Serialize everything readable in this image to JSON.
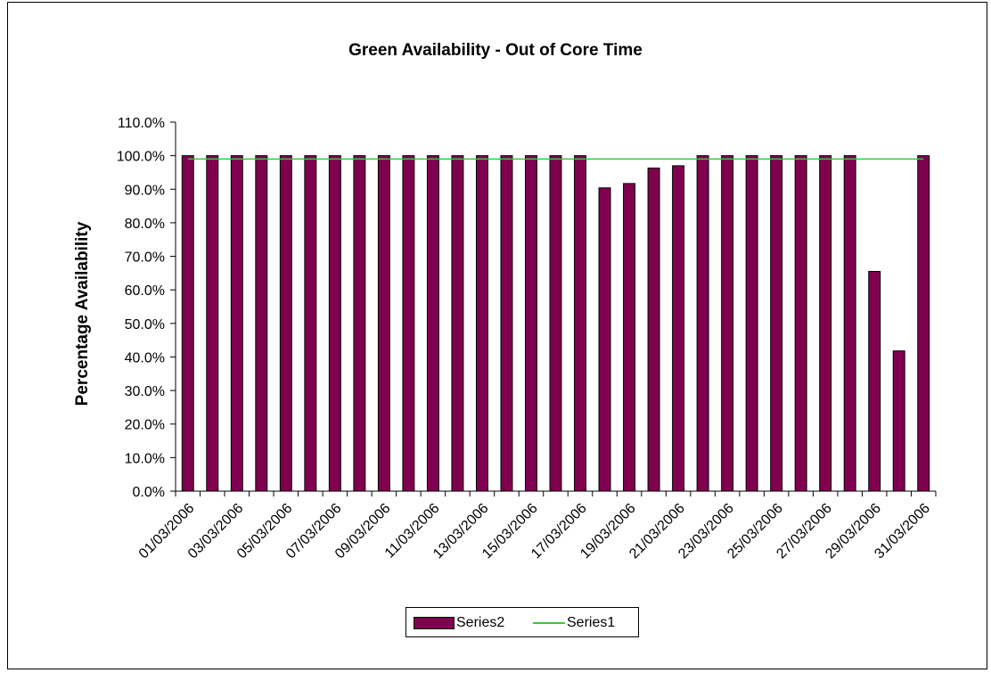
{
  "chart_data": {
    "type": "bar",
    "title": "Green Availability - Out of Core Time",
    "xlabel": "",
    "ylabel": "Percentage Availability",
    "ylim": [
      0,
      1.1
    ],
    "ytick_step": 0.1,
    "y_format": "percent_1dp",
    "categories": [
      "01/03/2006",
      "02/03/2006",
      "03/03/2006",
      "04/03/2006",
      "05/03/2006",
      "06/03/2006",
      "07/03/2006",
      "08/03/2006",
      "09/03/2006",
      "10/03/2006",
      "11/03/2006",
      "12/03/2006",
      "13/03/2006",
      "14/03/2006",
      "15/03/2006",
      "16/03/2006",
      "17/03/2006",
      "18/03/2006",
      "19/03/2006",
      "20/03/2006",
      "21/03/2006",
      "22/03/2006",
      "23/03/2006",
      "24/03/2006",
      "25/03/2006",
      "26/03/2006",
      "27/03/2006",
      "28/03/2006",
      "29/03/2006",
      "30/03/2006",
      "31/03/2006"
    ],
    "xtick_labels_shown": [
      "01/03/2006",
      "03/03/2006",
      "05/03/2006",
      "07/03/2006",
      "09/03/2006",
      "11/03/2006",
      "13/03/2006",
      "15/03/2006",
      "17/03/2006",
      "19/03/2006",
      "21/03/2006",
      "23/03/2006",
      "25/03/2006",
      "27/03/2006",
      "29/03/2006",
      "31/03/2006"
    ],
    "series": [
      {
        "name": "Series2",
        "kind": "bar",
        "color": "#800050",
        "values": [
          1.0,
          1.0,
          1.0,
          1.0,
          1.0,
          1.0,
          1.0,
          1.0,
          1.0,
          1.0,
          1.0,
          1.0,
          1.0,
          1.0,
          1.0,
          1.0,
          1.0,
          0.904,
          0.917,
          0.963,
          0.97,
          1.0,
          1.0,
          1.0,
          1.0,
          1.0,
          1.0,
          1.0,
          0.655,
          0.418,
          1.0
        ]
      },
      {
        "name": "Series1",
        "kind": "line",
        "color": "#33cc33",
        "value": 0.99
      }
    ],
    "grid": false,
    "legend_position": "bottom"
  }
}
